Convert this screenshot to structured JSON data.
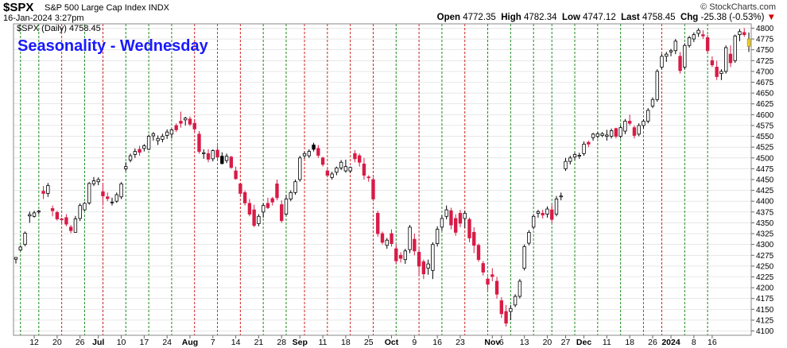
{
  "header": {
    "symbol": "$SPX",
    "name": "S&P 500 Large Cap Index",
    "exchange": "INDX",
    "brand": "© StockCharts.com",
    "datetime": "16-Jan-2024 3:27pm",
    "open_label": "Open",
    "open": "4772.35",
    "high_label": "High",
    "high": "4782.34",
    "low_label": "Low",
    "low": "4747.12",
    "last_label": "Last",
    "last": "4758.45",
    "chg_label": "Chg",
    "chg": "-25.38 (-0.53%)",
    "chg_arrow": "▼"
  },
  "legend": "$SPX (Daily) 4758.45",
  "overlay_title": "Seasonality - Wednesday",
  "colors": {
    "up_candle": "#ffffff",
    "down_candle": "#d81b46",
    "black_candle": "#000000",
    "last_candle": "#f5d020",
    "title": "#1a1aff",
    "green_line": "#1a8a1a",
    "red_line": "#d02020",
    "grid": "#d9d9d9"
  },
  "chart_data": {
    "type": "candlestick",
    "title": "$SPX (Daily) 4758.45",
    "ylim": [
      4090,
      4810
    ],
    "y_ticks": [
      4100,
      4125,
      4150,
      4175,
      4200,
      4225,
      4250,
      4275,
      4300,
      4325,
      4350,
      4375,
      4400,
      4425,
      4450,
      4475,
      4500,
      4525,
      4550,
      4575,
      4600,
      4625,
      4650,
      4675,
      4700,
      4725,
      4750,
      4775,
      4800
    ],
    "x_tick_labels": [
      {
        "i": 4,
        "label": "12"
      },
      {
        "i": 9,
        "label": "20"
      },
      {
        "i": 14,
        "label": "26"
      },
      {
        "i": 18,
        "label": "Jul",
        "bold": true
      },
      {
        "i": 23,
        "label": "10"
      },
      {
        "i": 28,
        "label": "17"
      },
      {
        "i": 33,
        "label": "24"
      },
      {
        "i": 38,
        "label": "Aug",
        "bold": true
      },
      {
        "i": 43,
        "label": "7"
      },
      {
        "i": 48,
        "label": "14"
      },
      {
        "i": 53,
        "label": "21"
      },
      {
        "i": 58,
        "label": "28"
      },
      {
        "i": 62,
        "label": "Sep",
        "bold": true
      },
      {
        "i": 67,
        "label": "11"
      },
      {
        "i": 72,
        "label": "18"
      },
      {
        "i": 77,
        "label": "25"
      },
      {
        "i": 82,
        "label": "Oct",
        "bold": true
      },
      {
        "i": 87,
        "label": "9"
      },
      {
        "i": 92,
        "label": "16"
      },
      {
        "i": 97,
        "label": "23"
      },
      {
        "i": 104,
        "label": "Nov",
        "bold": true
      },
      {
        "i": 106,
        "label": "6"
      },
      {
        "i": 111,
        "label": "13"
      },
      {
        "i": 116,
        "label": "20"
      },
      {
        "i": 120,
        "label": "27"
      },
      {
        "i": 124,
        "label": "Dec",
        "bold": true
      },
      {
        "i": 129,
        "label": "11"
      },
      {
        "i": 134,
        "label": "18"
      },
      {
        "i": 139,
        "label": "26"
      },
      {
        "i": 143,
        "label": "2024",
        "bold": true
      },
      {
        "i": 148,
        "label": "8"
      },
      {
        "i": 152,
        "label": "16"
      }
    ],
    "wednesday_lines": [
      {
        "i": 1,
        "color": "green"
      },
      {
        "i": 5,
        "color": "green"
      },
      {
        "i": 10,
        "color": "red"
      },
      {
        "i": 15,
        "color": "green"
      },
      {
        "i": 19,
        "color": "red"
      },
      {
        "i": 24,
        "color": "green"
      },
      {
        "i": 29,
        "color": "green"
      },
      {
        "i": 34,
        "color": "green"
      },
      {
        "i": 39,
        "color": "red"
      },
      {
        "i": 44,
        "color": "green"
      },
      {
        "i": 49,
        "color": "red"
      },
      {
        "i": 54,
        "color": "green"
      },
      {
        "i": 59,
        "color": "green"
      },
      {
        "i": 63,
        "color": "red"
      },
      {
        "i": 68,
        "color": "red"
      },
      {
        "i": 73,
        "color": "red"
      },
      {
        "i": 78,
        "color": "red"
      },
      {
        "i": 83,
        "color": "green"
      },
      {
        "i": 88,
        "color": "red"
      },
      {
        "i": 93,
        "color": "green"
      },
      {
        "i": 98,
        "color": "red"
      },
      {
        "i": 103,
        "color": "green"
      },
      {
        "i": 108,
        "color": "green"
      },
      {
        "i": 113,
        "color": "green"
      },
      {
        "i": 117,
        "color": "green"
      },
      {
        "i": 122,
        "color": "green"
      },
      {
        "i": 127,
        "color": "green"
      },
      {
        "i": 132,
        "color": "green"
      },
      {
        "i": 137,
        "color": "green"
      },
      {
        "i": 141,
        "color": "red"
      },
      {
        "i": 146,
        "color": "green"
      },
      {
        "i": 151,
        "color": "green"
      }
    ],
    "candles": [
      [
        4270,
        4270,
        4256,
        4266,
        "u"
      ],
      [
        4287,
        4298,
        4285,
        4294,
        "u"
      ],
      [
        4300,
        4330,
        4296,
        4326,
        "u"
      ],
      [
        4369,
        4376,
        4350,
        4366,
        "u"
      ],
      [
        4365,
        4378,
        4362,
        4373,
        "u"
      ],
      [
        4375,
        4380,
        4370,
        4377,
        "u"
      ],
      [
        4423,
        4435,
        4405,
        4418,
        "d"
      ],
      [
        4418,
        4442,
        4410,
        4436,
        "u"
      ],
      [
        4383,
        4390,
        4365,
        4378,
        "d"
      ],
      [
        4374,
        4378,
        4355,
        4359,
        "d"
      ],
      [
        4359,
        4362,
        4349,
        4357,
        "d"
      ],
      [
        4362,
        4370,
        4342,
        4347,
        "d"
      ],
      [
        4340,
        4345,
        4326,
        4332,
        "d"
      ],
      [
        4328,
        4366,
        4328,
        4359,
        "u"
      ],
      [
        4360,
        4395,
        4354,
        4390,
        "u"
      ],
      [
        4380,
        4398,
        4378,
        4395,
        "u"
      ],
      [
        4396,
        4444,
        4392,
        4441,
        "u"
      ],
      [
        4447,
        4456,
        4435,
        4440,
        "u"
      ],
      [
        4445,
        4455,
        4437,
        4450,
        "u"
      ],
      [
        4422,
        4440,
        4390,
        4412,
        "d"
      ],
      [
        4410,
        4420,
        4400,
        4406,
        "d"
      ],
      [
        4398,
        4408,
        4390,
        4398,
        "u"
      ],
      [
        4400,
        4420,
        4396,
        4415,
        "u"
      ],
      [
        4410,
        4444,
        4405,
        4440,
        "u"
      ],
      [
        4475,
        4490,
        4470,
        4480,
        "u"
      ],
      [
        4495,
        4510,
        4490,
        4505,
        "u"
      ],
      [
        4508,
        4522,
        4500,
        4515,
        "u"
      ],
      [
        4513,
        4528,
        4505,
        4520,
        "d"
      ],
      [
        4522,
        4532,
        4515,
        4528,
        "u"
      ],
      [
        4520,
        4554,
        4518,
        4550,
        "u"
      ],
      [
        4551,
        4560,
        4540,
        4556,
        "u"
      ],
      [
        4540,
        4552,
        4530,
        4545,
        "u"
      ],
      [
        4543,
        4556,
        4536,
        4550,
        "u"
      ],
      [
        4552,
        4566,
        4544,
        4560,
        "u"
      ],
      [
        4555,
        4568,
        4545,
        4565,
        "u"
      ],
      [
        4575,
        4580,
        4560,
        4565,
        "d"
      ],
      [
        4580,
        4607,
        4570,
        4585,
        "d"
      ],
      [
        4588,
        4595,
        4575,
        4592,
        "u"
      ],
      [
        4590,
        4596,
        4574,
        4578,
        "d"
      ],
      [
        4580,
        4590,
        4560,
        4567,
        "d"
      ],
      [
        4555,
        4562,
        4510,
        4515,
        "d"
      ],
      [
        4510,
        4520,
        4498,
        4512,
        "u"
      ],
      [
        4510,
        4520,
        4490,
        4497,
        "d"
      ],
      [
        4498,
        4520,
        4492,
        4517,
        "u"
      ],
      [
        4518,
        4528,
        4496,
        4502,
        "d"
      ],
      [
        4504,
        4513,
        4485,
        4487,
        "b"
      ],
      [
        4494,
        4510,
        4488,
        4504,
        "u"
      ],
      [
        4502,
        4505,
        4475,
        4478,
        "d"
      ],
      [
        4470,
        4480,
        4450,
        4452,
        "d"
      ],
      [
        4440,
        4443,
        4415,
        4418,
        "d"
      ],
      [
        4420,
        4425,
        4390,
        4396,
        "d"
      ],
      [
        4395,
        4405,
        4365,
        4370,
        "d"
      ],
      [
        4380,
        4392,
        4340,
        4344,
        "d"
      ],
      [
        4348,
        4370,
        4342,
        4365,
        "u"
      ],
      [
        4375,
        4395,
        4362,
        4390,
        "u"
      ],
      [
        4395,
        4408,
        4382,
        4385,
        "d"
      ],
      [
        4398,
        4410,
        4390,
        4406,
        "d"
      ],
      [
        4408,
        4450,
        4402,
        4440,
        "d"
      ],
      [
        4392,
        4402,
        4350,
        4355,
        "d"
      ],
      [
        4370,
        4415,
        4366,
        4405,
        "u"
      ],
      [
        4405,
        4425,
        4400,
        4420,
        "u"
      ],
      [
        4420,
        4450,
        4415,
        4445,
        "u"
      ],
      [
        4450,
        4505,
        4445,
        4500,
        "u"
      ],
      [
        4505,
        4515,
        4498,
        4510,
        "u"
      ],
      [
        4505,
        4520,
        4500,
        4515,
        "u"
      ],
      [
        4520,
        4535,
        4515,
        4530,
        "b"
      ],
      [
        4522,
        4530,
        4500,
        4506,
        "d"
      ],
      [
        4500,
        4503,
        4480,
        4485,
        "d"
      ],
      [
        4470,
        4475,
        4455,
        4460,
        "d"
      ],
      [
        4455,
        4468,
        4450,
        4463,
        "u"
      ],
      [
        4467,
        4480,
        4460,
        4477,
        "u"
      ],
      [
        4477,
        4495,
        4472,
        4490,
        "u"
      ],
      [
        4480,
        4496,
        4466,
        4470,
        "u"
      ],
      [
        4470,
        4480,
        4465,
        4478,
        "u"
      ],
      [
        4498,
        4518,
        4490,
        4510,
        "d"
      ],
      [
        4505,
        4510,
        4480,
        4490,
        "d"
      ],
      [
        4486,
        4500,
        4450,
        4460,
        "d"
      ],
      [
        4456,
        4460,
        4445,
        4455,
        "d"
      ],
      [
        4450,
        4455,
        4400,
        4405,
        "d"
      ],
      [
        4372,
        4378,
        4318,
        4325,
        "d"
      ],
      [
        4325,
        4330,
        4300,
        4305,
        "d"
      ],
      [
        4298,
        4315,
        4290,
        4310,
        "u"
      ],
      [
        4325,
        4335,
        4295,
        4302,
        "d"
      ],
      [
        4290,
        4300,
        4255,
        4262,
        "d"
      ],
      [
        4275,
        4282,
        4258,
        4268,
        "d"
      ],
      [
        4265,
        4290,
        4255,
        4285,
        "u"
      ],
      [
        4288,
        4345,
        4280,
        4340,
        "u"
      ],
      [
        4312,
        4325,
        4275,
        4285,
        "d"
      ],
      [
        4282,
        4290,
        4230,
        4250,
        "d"
      ],
      [
        4260,
        4265,
        4220,
        4232,
        "d"
      ],
      [
        4255,
        4265,
        4230,
        4245,
        "u"
      ],
      [
        4240,
        4305,
        4220,
        4300,
        "u"
      ],
      [
        4302,
        4342,
        4295,
        4335,
        "u"
      ],
      [
        4340,
        4368,
        4332,
        4360,
        "u"
      ],
      [
        4365,
        4390,
        4358,
        4380,
        "u"
      ],
      [
        4378,
        4385,
        4335,
        4345,
        "d"
      ],
      [
        4360,
        4370,
        4320,
        4328,
        "d"
      ],
      [
        4372,
        4380,
        4340,
        4349,
        "d"
      ],
      [
        4360,
        4378,
        4338,
        4372,
        "u"
      ],
      [
        4358,
        4362,
        4305,
        4315,
        "d"
      ],
      [
        4328,
        4340,
        4280,
        4298,
        "d"
      ],
      [
        4298,
        4302,
        4260,
        4265,
        "d"
      ],
      [
        4256,
        4262,
        4228,
        4236,
        "d"
      ],
      [
        4220,
        4225,
        4195,
        4208,
        "d"
      ],
      [
        4230,
        4245,
        4215,
        4226,
        "d"
      ],
      [
        4215,
        4225,
        4175,
        4185,
        "d"
      ],
      [
        4170,
        4178,
        4130,
        4140,
        "d"
      ],
      [
        4145,
        4160,
        4110,
        4118,
        "d"
      ],
      [
        4145,
        4160,
        4125,
        4152,
        "u"
      ],
      [
        4160,
        4185,
        4155,
        4180,
        "u"
      ],
      [
        4180,
        4220,
        4175,
        4215,
        "u"
      ],
      [
        4245,
        4300,
        4240,
        4295,
        "u"
      ],
      [
        4303,
        4333,
        4298,
        4328,
        "u"
      ],
      [
        4340,
        4370,
        4335,
        4365,
        "u"
      ],
      [
        4372,
        4380,
        4362,
        4376,
        "u"
      ],
      [
        4372,
        4380,
        4360,
        4368,
        "d"
      ],
      [
        4370,
        4388,
        4362,
        4382,
        "u"
      ],
      [
        4380,
        4392,
        4350,
        4358,
        "d"
      ],
      [
        4370,
        4412,
        4365,
        4405,
        "u"
      ],
      [
        4410,
        4420,
        4402,
        4412,
        "u"
      ],
      [
        4475,
        4500,
        4470,
        4492,
        "u"
      ],
      [
        4492,
        4505,
        4485,
        4500,
        "u"
      ],
      [
        4502,
        4512,
        4495,
        4508,
        "u"
      ],
      [
        4504,
        4512,
        4498,
        4506,
        "u"
      ],
      [
        4510,
        4538,
        4505,
        4532,
        "u"
      ],
      [
        4532,
        4540,
        4525,
        4536,
        "d"
      ],
      [
        4547,
        4558,
        4540,
        4555,
        "u"
      ],
      [
        4550,
        4560,
        4545,
        4556,
        "u"
      ],
      [
        4552,
        4560,
        4548,
        4556,
        "u"
      ],
      [
        4553,
        4565,
        4540,
        4550,
        "u"
      ],
      [
        4550,
        4568,
        4545,
        4563,
        "u"
      ],
      [
        4568,
        4570,
        4545,
        4550,
        "d"
      ],
      [
        4550,
        4575,
        4545,
        4570,
        "u"
      ],
      [
        4562,
        4590,
        4555,
        4585,
        "u"
      ],
      [
        4585,
        4600,
        4575,
        4580,
        "d"
      ],
      [
        4570,
        4575,
        4545,
        4552,
        "d"
      ],
      [
        4555,
        4580,
        4550,
        4575,
        "u"
      ],
      [
        4575,
        4590,
        4568,
        4585,
        "u"
      ],
      [
        4585,
        4615,
        4580,
        4610,
        "u"
      ],
      [
        4620,
        4640,
        4615,
        4635,
        "u"
      ],
      [
        4635,
        4705,
        4630,
        4700,
        "u"
      ],
      [
        4710,
        4740,
        4705,
        4735,
        "u"
      ],
      [
        4735,
        4745,
        4722,
        4740,
        "u"
      ],
      [
        4745,
        4752,
        4735,
        4748,
        "u"
      ],
      [
        4748,
        4775,
        4740,
        4770,
        "u"
      ],
      [
        4735,
        4745,
        4695,
        4702,
        "d"
      ],
      [
        4710,
        4765,
        4705,
        4760,
        "u"
      ],
      [
        4760,
        4782,
        4755,
        4778,
        "u"
      ],
      [
        4775,
        4790,
        4768,
        4785,
        "u"
      ],
      [
        4788,
        4800,
        4780,
        4795,
        "u"
      ],
      [
        4785,
        4795,
        4775,
        4782,
        "d"
      ],
      [
        4778,
        4785,
        4742,
        4748,
        "d"
      ],
      [
        4725,
        4735,
        4710,
        4715,
        "d"
      ],
      [
        4710,
        4725,
        4680,
        4688,
        "d"
      ],
      [
        4695,
        4705,
        4680,
        4700,
        "u"
      ],
      [
        4700,
        4760,
        4695,
        4755,
        "u"
      ],
      [
        4740,
        4760,
        4710,
        4720,
        "d"
      ],
      [
        4725,
        4785,
        4720,
        4782,
        "u"
      ],
      [
        4785,
        4798,
        4770,
        4792,
        "u"
      ],
      [
        4790,
        4800,
        4780,
        4785,
        "d"
      ],
      [
        4775,
        4790,
        4745,
        4758,
        "y"
      ]
    ]
  }
}
